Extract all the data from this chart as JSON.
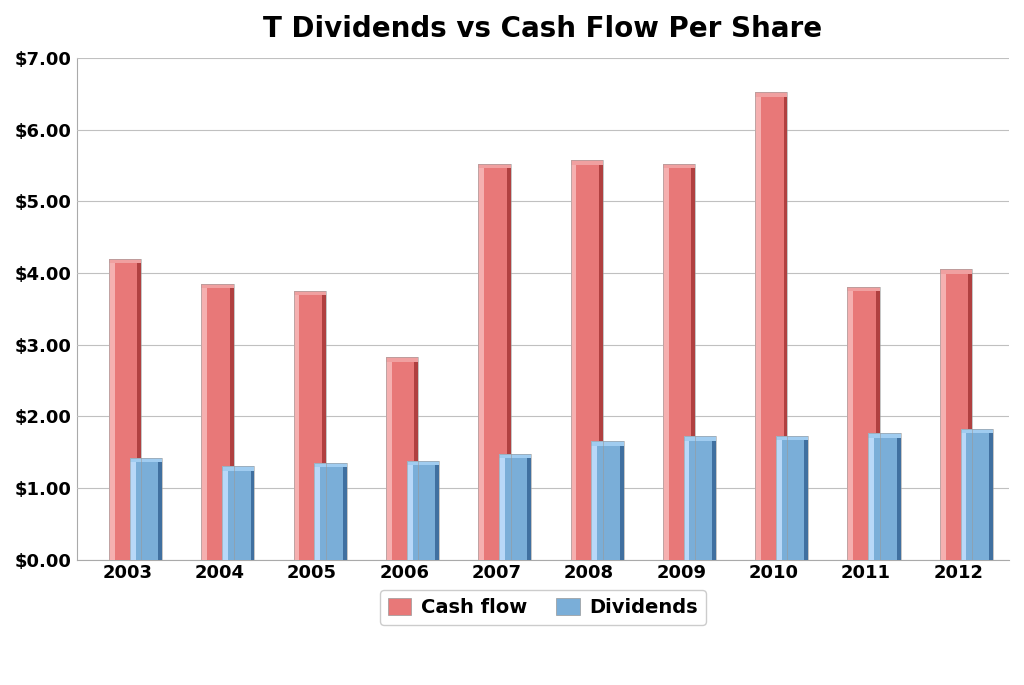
{
  "title": "T Dividends vs Cash Flow Per Share",
  "years": [
    "2003",
    "2004",
    "2005",
    "2006",
    "2007",
    "2008",
    "2009",
    "2010",
    "2011",
    "2012"
  ],
  "cash_flow": [
    4.2,
    3.85,
    3.75,
    2.82,
    5.52,
    5.57,
    5.52,
    6.52,
    3.8,
    4.05
  ],
  "dividends": [
    1.42,
    1.3,
    1.35,
    1.38,
    1.47,
    1.65,
    1.72,
    1.73,
    1.76,
    1.82
  ],
  "cf_face_color": "#e87878",
  "cf_highlight_color": "#f5b0b0",
  "cf_shadow_color": "#b04040",
  "cf_top_color": "#f0a0a0",
  "div_face_color": "#7aaed8",
  "div_highlight_color": "#b8d8f8",
  "div_shadow_color": "#4070a0",
  "div_top_color": "#a0ccf0",
  "background_color": "#ffffff",
  "grid_color": "#c0c0c0",
  "ylim": [
    0,
    7.0
  ],
  "yticks": [
    0.0,
    1.0,
    2.0,
    3.0,
    4.0,
    5.0,
    6.0,
    7.0
  ],
  "ytick_labels": [
    "$0.00",
    "$1.00",
    "$2.00",
    "$3.00",
    "$4.00",
    "$5.00",
    "$6.00",
    "$7.00"
  ],
  "legend_cash_flow": "Cash flow",
  "legend_dividends": "Dividends",
  "title_fontsize": 20,
  "tick_fontsize": 13,
  "legend_fontsize": 14,
  "bar_width": 0.35,
  "bar_gap": 0.05
}
